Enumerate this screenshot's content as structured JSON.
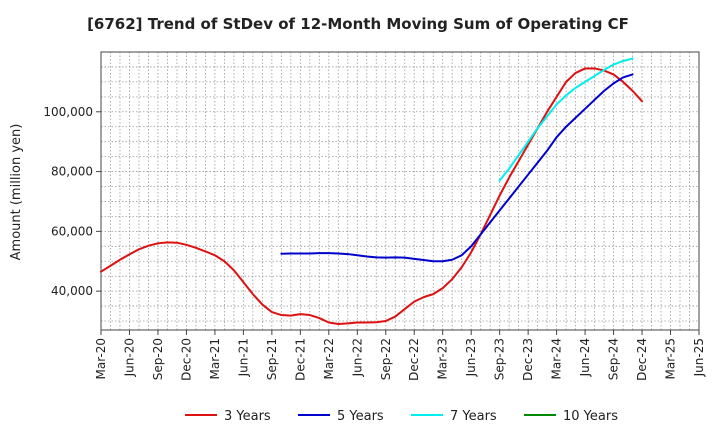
{
  "chart_data": {
    "type": "line",
    "title": "[6762]  Trend of StDev of 12-Month Moving Sum of Operating CF",
    "xlabel": "",
    "ylabel": "Amount (million yen)",
    "x_ticks": [
      "Mar-20",
      "Jun-20",
      "Sep-20",
      "Dec-20",
      "Mar-21",
      "Jun-21",
      "Sep-21",
      "Dec-21",
      "Mar-22",
      "Jun-22",
      "Sep-22",
      "Dec-22",
      "Mar-23",
      "Jun-23",
      "Sep-23",
      "Dec-23",
      "Mar-24",
      "Jun-24",
      "Sep-24",
      "Dec-24",
      "Mar-25",
      "Jun-25"
    ],
    "y_ticks": [
      40000,
      60000,
      80000,
      100000
    ],
    "y_tick_labels": [
      "40,000",
      "60,000",
      "80,000",
      "100,000"
    ],
    "ylim": [
      27000,
      120000
    ],
    "grid": true,
    "legend_position": "bottom",
    "series": [
      {
        "name": "3 Years",
        "color": "#dd1111",
        "start_index": 0,
        "values": [
          46500,
          48500,
          50500,
          52300,
          54000,
          55200,
          56000,
          56300,
          56200,
          55500,
          54500,
          53300,
          52000,
          50000,
          47000,
          43000,
          39000,
          35500,
          33000,
          32000,
          31800,
          32300,
          32000,
          31000,
          29500,
          29000,
          29200,
          29500,
          29500,
          29600,
          30000,
          31500,
          34000,
          36500,
          38000,
          39000,
          41000,
          44000,
          48000,
          53000,
          59000,
          65500,
          72000,
          78000,
          83500,
          89000,
          94500,
          100000,
          105000,
          110000,
          113000,
          114500,
          114500,
          113800,
          112500,
          110000,
          107000,
          103500
        ]
      },
      {
        "name": "5 Years",
        "color": "#0000cc",
        "start_index": 19,
        "values": [
          52500,
          52600,
          52600,
          52600,
          52700,
          52700,
          52600,
          52400,
          52000,
          51600,
          51300,
          51200,
          51300,
          51200,
          50800,
          50400,
          50000,
          50000,
          50500,
          52000,
          55000,
          59000,
          63000,
          67000,
          71000,
          75000,
          79000,
          83000,
          87000,
          91500,
          95000,
          98000,
          101000,
          104000,
          107000,
          109500,
          111500,
          112500
        ]
      },
      {
        "name": "7 Years",
        "color": "#00eeee",
        "start_index": 42,
        "values": [
          77000,
          81000,
          85500,
          90000,
          94500,
          98500,
          102500,
          105500,
          108000,
          110000,
          112000,
          114000,
          115800,
          117000,
          117800
        ]
      },
      {
        "name": "10 Years",
        "color": "#008800",
        "start_index": 0,
        "values": []
      }
    ]
  }
}
